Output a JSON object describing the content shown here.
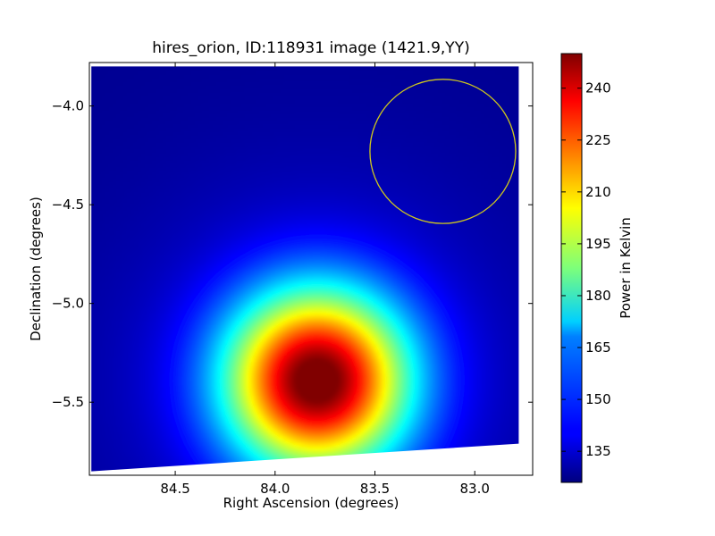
{
  "chart_data": {
    "type": "heatmap",
    "title": "hires_orion, ID:118931 image (1421.9,YY)",
    "xlabel": "Right Ascension (degrees)",
    "ylabel": "Declination (degrees)",
    "colorbar_label": "Power in Kelvin",
    "colormap": "jet",
    "x_range": [
      84.93,
      82.71
    ],
    "y_range": [
      -5.87,
      -3.78
    ],
    "x_ticks": [
      {
        "value": 84.5,
        "label": "84.5"
      },
      {
        "value": 84.0,
        "label": "84.0"
      },
      {
        "value": 83.5,
        "label": "83.5"
      },
      {
        "value": 83.0,
        "label": "83.0"
      }
    ],
    "y_ticks": [
      {
        "value": -4.0,
        "label": "−4.0"
      },
      {
        "value": -4.5,
        "label": "−4.5"
      },
      {
        "value": -5.0,
        "label": "−5.0"
      },
      {
        "value": -5.5,
        "label": "−5.5"
      }
    ],
    "color_range": [
      126,
      250
    ],
    "colorbar_ticks": [
      {
        "value": 135,
        "label": "135"
      },
      {
        "value": 150,
        "label": "150"
      },
      {
        "value": 165,
        "label": "165"
      },
      {
        "value": 180,
        "label": "180"
      },
      {
        "value": 195,
        "label": "195"
      },
      {
        "value": 210,
        "label": "210"
      },
      {
        "value": 225,
        "label": "225"
      },
      {
        "value": 240,
        "label": "240"
      }
    ],
    "background_level": 128,
    "peak": {
      "ra": 83.79,
      "dec": -5.39,
      "value": 250
    },
    "source_sigma_deg": 0.32,
    "circle": {
      "ra": 83.16,
      "dec": -4.23,
      "radius_deg": 0.365,
      "color": "#cfc81c"
    },
    "coverage_corners": {
      "top_left": [
        84.92,
        -3.8
      ],
      "top_right": [
        82.78,
        -3.8
      ],
      "bottom_right": [
        82.78,
        -5.71
      ],
      "bottom_left": [
        84.92,
        -5.85
      ]
    },
    "grid": false,
    "colorbar_position": "right"
  }
}
